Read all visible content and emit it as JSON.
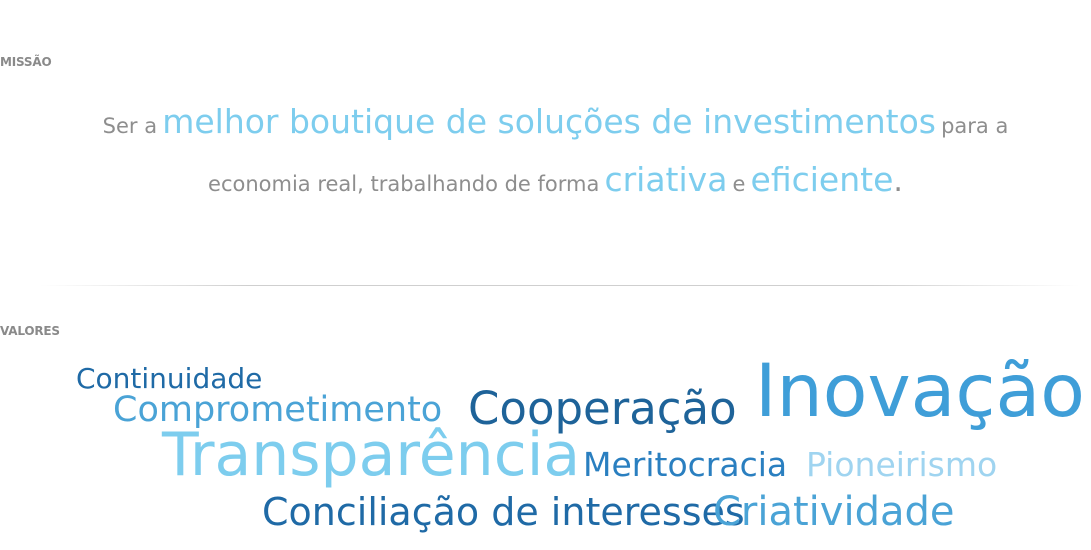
{
  "missao": {
    "label": "MISSÃO",
    "parts": [
      "Ser a",
      "melhor boutique de soluções de investimentos",
      "para a",
      "economia real, trabalhando de forma",
      "criativa",
      "e",
      "eficiente",
      "."
    ]
  },
  "valores": {
    "label": "VALORES",
    "words": {
      "continuidade": "Continuidade",
      "comprometimento": "Comprometimento",
      "cooperacao": "Cooperação",
      "inovacao": "Inovação",
      "transparencia": "Transparência",
      "meritocracia": "Meritocracia",
      "pioneirismo": "Pioneirismo",
      "conciliacao": "Conciliação de interesses",
      "criatividade": "Criatividade"
    }
  },
  "colors": {
    "label_gray": "#8a8a8a",
    "text_gray": "#8e8e8e",
    "highlight_light_blue": "#7dcdee",
    "dark_blue": "#1f6aa6",
    "mid_blue": "#4aa3d6",
    "pale_blue": "#9fd4f0"
  }
}
